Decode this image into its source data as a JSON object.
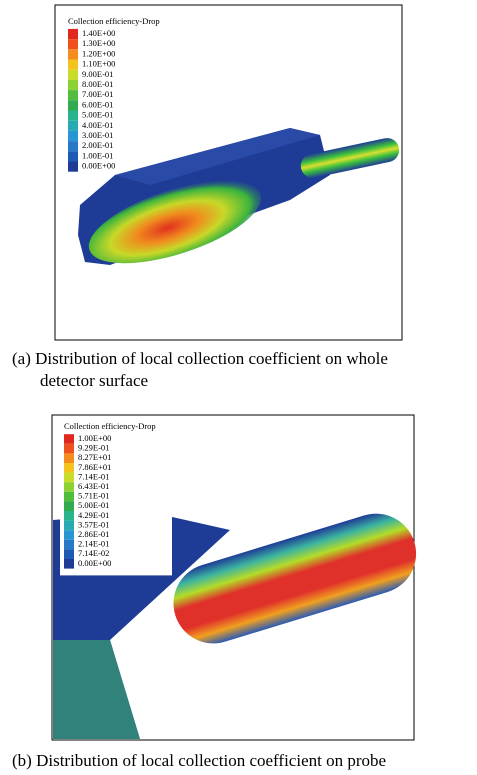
{
  "panels": [
    {
      "legend_title": "Collection efficiency-Drop",
      "legend_labels": [
        "1.40E+00",
        "1.30E+00",
        "1.20E+00",
        "1.10E+00",
        "9.00E-01",
        "8.00E-01",
        "7.00E-01",
        "6.00E-01",
        "5.00E-01",
        "4.00E-01",
        "3.00E-01",
        "2.00E-01",
        "1.00E-01",
        "0.00E+00"
      ],
      "caption": [
        "(a) Distribution of local collection coefficient on whole",
        "detector surface"
      ]
    },
    {
      "legend_title": "Collection efficiency-Drop",
      "legend_labels": [
        "1.00E+00",
        "9.29E-01",
        "8.27E+01",
        "7.86E+01",
        "7.14E-01",
        "6.43E-01",
        "5.71E-01",
        "5.00E-01",
        "4.29E-01",
        "3.57E-01",
        "2.86E-01",
        "2.14E-01",
        "7.14E-02",
        "0.00E+00"
      ],
      "caption": [
        "(b) Distribution of local collection  coefficient on probe"
      ]
    }
  ]
}
